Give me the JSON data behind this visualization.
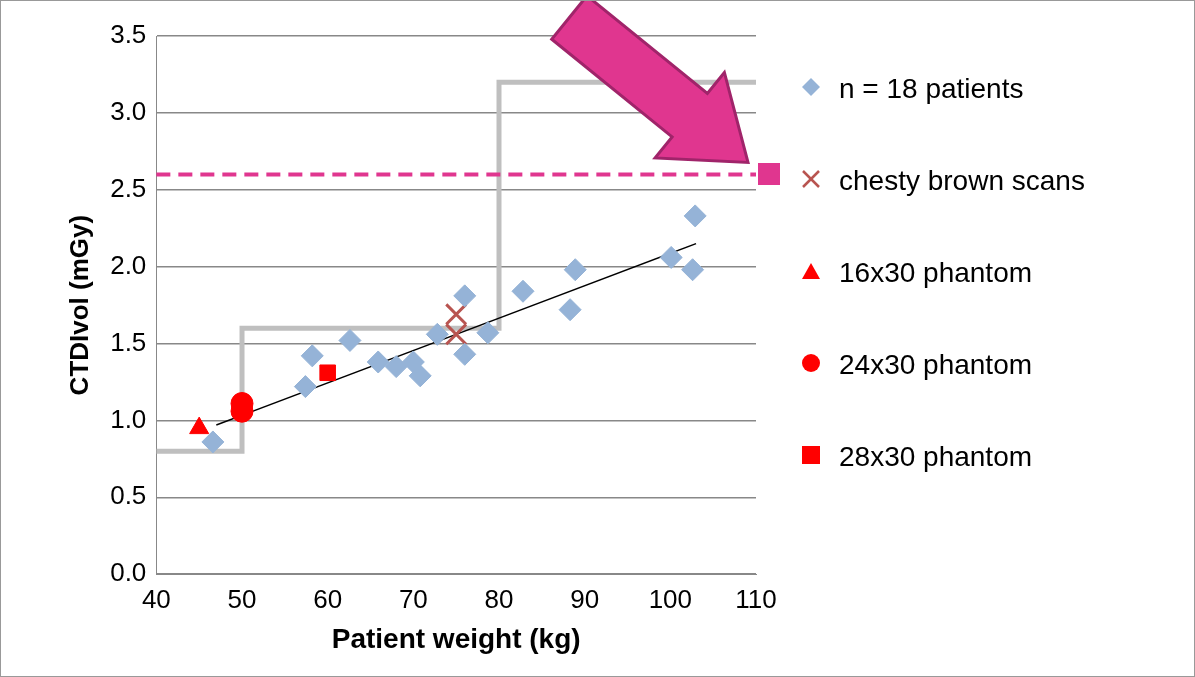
{
  "chart_data": {
    "type": "scatter",
    "xlabel": "Patient weight (kg)",
    "ylabel": "CTDIvol (mGy)",
    "xlim": [
      40,
      110
    ],
    "xticks": [
      40,
      50,
      60,
      70,
      80,
      90,
      100,
      110
    ],
    "ylim": [
      0,
      3.5
    ],
    "yticks": [
      {
        "value": 0,
        "label": "0.0"
      },
      {
        "value": 0.5,
        "label": "0.5"
      },
      {
        "value": 1,
        "label": "1.0"
      },
      {
        "value": 1.5,
        "label": "1.5"
      },
      {
        "value": 2,
        "label": "2.0"
      },
      {
        "value": 2.5,
        "label": "2.5"
      },
      {
        "value": 3,
        "label": "3.0"
      },
      {
        "value": 3.5,
        "label": "3.5"
      }
    ],
    "grid": "y",
    "legend": "right",
    "ref_lines": [
      {
        "axis": "y",
        "value": 2.6,
        "color": "#e0368f",
        "line_style": "dashed"
      }
    ],
    "series": [
      {
        "type": "step",
        "color": "#bfbfbf",
        "marker": "none",
        "x": [
          40,
          50,
          80,
          110
        ],
        "values": [
          0.8,
          1.6,
          3.2,
          3.2
        ]
      },
      {
        "type": "line",
        "color": "#000000",
        "marker": "none",
        "x": [
          47,
          103
        ],
        "values": [
          0.97,
          2.15
        ]
      },
      {
        "type": "scatter",
        "name": "n = 18 patients",
        "color": "#95b3d7",
        "marker": "diamond",
        "x": [
          46.6,
          57.4,
          58.2,
          62.6,
          65.9,
          68,
          70,
          70.8,
          72.8,
          76,
          76,
          78.7,
          82.8,
          88.3,
          88.9,
          100.1,
          102.6,
          102.9
        ],
        "values": [
          0.86,
          1.22,
          1.42,
          1.52,
          1.38,
          1.35,
          1.38,
          1.29,
          1.56,
          1.81,
          1.43,
          1.57,
          1.84,
          1.72,
          1.98,
          2.06,
          1.98,
          2.33
        ]
      },
      {
        "type": "scatter",
        "name": "chesty brown scans",
        "color": "#b85450",
        "marker": "cross",
        "x": [
          75,
          75
        ],
        "values": [
          1.56,
          1.69
        ]
      },
      {
        "type": "scatter",
        "name": "16x30 phantom",
        "color": "#ff0000",
        "marker": "triangle",
        "x": [
          45
        ],
        "values": [
          0.95
        ]
      },
      {
        "type": "scatter",
        "name": "24x30 phantom",
        "color": "#ff0000",
        "marker": "circle",
        "x": [
          50,
          50
        ],
        "values": [
          1.06,
          1.11
        ]
      },
      {
        "type": "scatter",
        "name": "28x30 phantom",
        "color": "#ff0000",
        "marker": "square",
        "x": [
          60
        ],
        "values": [
          1.31
        ]
      }
    ]
  }
}
